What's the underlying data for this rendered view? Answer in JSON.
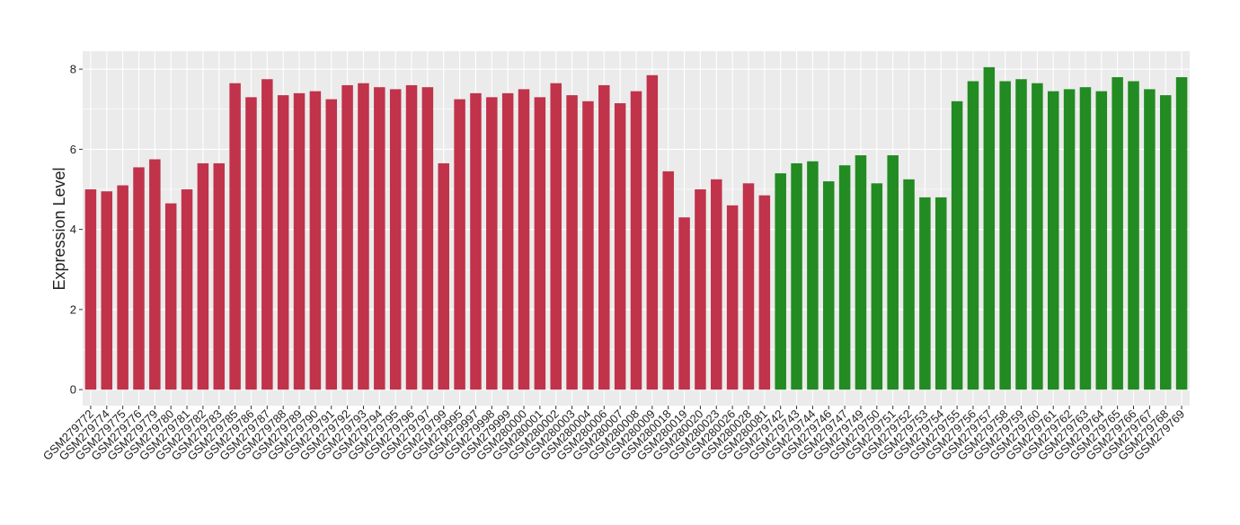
{
  "chart_data": {
    "type": "bar",
    "y_label": "Expression Level",
    "categories": [
      "GSM279772",
      "GSM279774",
      "GSM279775",
      "GSM279776",
      "GSM279779",
      "GSM279780",
      "GSM279781",
      "GSM279782",
      "GSM279783",
      "GSM279785",
      "GSM279786",
      "GSM279787",
      "GSM279788",
      "GSM279789",
      "GSM279790",
      "GSM279791",
      "GSM279792",
      "GSM279793",
      "GSM279794",
      "GSM279795",
      "GSM279796",
      "GSM279797",
      "GSM279799",
      "GSM279995",
      "GSM279997",
      "GSM279998",
      "GSM279999",
      "GSM280000",
      "GSM280001",
      "GSM280002",
      "GSM280003",
      "GSM280004",
      "GSM280006",
      "GSM280007",
      "GSM280008",
      "GSM280009",
      "GSM280018",
      "GSM280019",
      "GSM280020",
      "GSM280023",
      "GSM280026",
      "GSM280028",
      "GSM280081",
      "GSM279742",
      "GSM279743",
      "GSM279744",
      "GSM279746",
      "GSM279747",
      "GSM279749",
      "GSM279750",
      "GSM279751",
      "GSM279752",
      "GSM279753",
      "GSM279754",
      "GSM279755",
      "GSM279756",
      "GSM279757",
      "GSM279758",
      "GSM279759",
      "GSM279760",
      "GSM279761",
      "GSM279762",
      "GSM279763",
      "GSM279764",
      "GSM279765",
      "GSM279766",
      "GSM279767",
      "GSM279768",
      "GSM279769"
    ],
    "values": [
      5.0,
      4.95,
      5.1,
      5.55,
      5.75,
      4.65,
      5.0,
      5.65,
      5.65,
      7.65,
      7.3,
      7.75,
      7.35,
      7.4,
      7.45,
      7.25,
      7.6,
      7.65,
      7.55,
      7.5,
      7.6,
      7.55,
      5.65,
      7.25,
      7.4,
      7.3,
      7.4,
      7.5,
      7.3,
      7.65,
      7.35,
      7.2,
      7.6,
      7.15,
      7.45,
      7.85,
      5.45,
      4.3,
      5.0,
      5.25,
      4.6,
      5.15,
      4.85,
      5.4,
      5.65,
      5.7,
      5.2,
      5.6,
      5.85,
      5.15,
      5.85,
      5.25,
      4.8,
      4.8,
      7.2,
      7.7,
      8.05,
      7.7,
      7.75,
      7.65,
      7.45,
      7.5,
      7.55,
      7.45,
      7.8,
      7.7,
      7.5,
      7.35,
      7.8
    ],
    "colors": [
      "#c0334a",
      "#c0334a",
      "#c0334a",
      "#c0334a",
      "#c0334a",
      "#c0334a",
      "#c0334a",
      "#c0334a",
      "#c0334a",
      "#c0334a",
      "#c0334a",
      "#c0334a",
      "#c0334a",
      "#c0334a",
      "#c0334a",
      "#c0334a",
      "#c0334a",
      "#c0334a",
      "#c0334a",
      "#c0334a",
      "#c0334a",
      "#c0334a",
      "#c0334a",
      "#c0334a",
      "#c0334a",
      "#c0334a",
      "#c0334a",
      "#c0334a",
      "#c0334a",
      "#c0334a",
      "#c0334a",
      "#c0334a",
      "#c0334a",
      "#c0334a",
      "#c0334a",
      "#c0334a",
      "#c0334a",
      "#c0334a",
      "#c0334a",
      "#c0334a",
      "#c0334a",
      "#c0334a",
      "#c0334a",
      "#228b22",
      "#228b22",
      "#228b22",
      "#228b22",
      "#228b22",
      "#228b22",
      "#228b22",
      "#228b22",
      "#228b22",
      "#228b22",
      "#228b22",
      "#228b22",
      "#228b22",
      "#228b22",
      "#228b22",
      "#228b22",
      "#228b22",
      "#228b22",
      "#228b22",
      "#228b22",
      "#228b22",
      "#228b22",
      "#228b22",
      "#228b22",
      "#228b22",
      "#228b22"
    ],
    "ylim": [
      -0.4,
      8.45
    ],
    "yticks": [
      0,
      2,
      4,
      6,
      8
    ],
    "grid": true
  }
}
